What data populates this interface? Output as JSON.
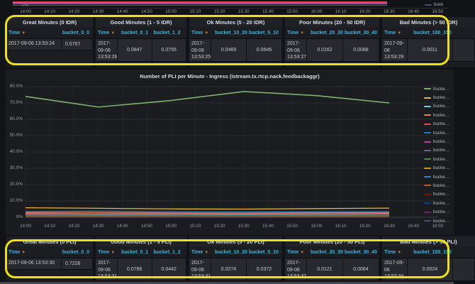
{
  "annotations": {
    "highlight_color": "#f0e20c"
  },
  "top_strip": {
    "y_axis_label": "0%",
    "legend": {
      "label": "buck",
      "color": "#584477"
    },
    "line_colors": [
      "#E24D42",
      "#BA43A9",
      "#1F78C1"
    ]
  },
  "top_tables": [
    {
      "title": "Great Minutes (0 IDR)",
      "columns": [
        "Time",
        "bucket_0_0"
      ],
      "row": {
        "time": "2017-09-06 13:53:24",
        "values": [
          "0.5767"
        ]
      }
    },
    {
      "title": "Good Minutes (1 - 5 IDR)",
      "columns": [
        "Time",
        "bucket_0_1",
        "bucket_1_2"
      ],
      "row": {
        "time": "2017-09-06 13:53:26",
        "values": [
          "0.0847",
          "0.0755"
        ]
      }
    },
    {
      "title": "Ok Minutes (5 - 20 IDR)",
      "columns": [
        "Time",
        "bucket_10_20",
        "bucket_5_10"
      ],
      "row": {
        "time": "2017-09-06 13:53:25",
        "values": [
          "0.0469",
          "0.0646"
        ]
      }
    },
    {
      "title": "Poor Minutes (20 - 50 IDR)",
      "columns": [
        "Time",
        "bucket_20_30",
        "bucket_30_40"
      ],
      "row": {
        "time": "2017-09-06 13:53:27",
        "values": [
          "0.0162",
          "0.0088"
        ]
      }
    },
    {
      "title": "Bad Minutes (> 50 IDR)",
      "columns": [
        "Time",
        "bucket_100_150"
      ],
      "row": {
        "time": "2017-09-06 13:53:29",
        "values": [
          "0.0011"
        ]
      }
    }
  ],
  "bottom_tables": [
    {
      "title": "Great Minutes (0 PLI)",
      "columns": [
        "Time",
        "bucket_0_0"
      ],
      "row": {
        "time": "2017-09-06 13:53:30",
        "values": [
          "0.7226"
        ]
      }
    },
    {
      "title": "Good Minutes (1 - 5 PLI)",
      "columns": [
        "Time",
        "bucket_0_1",
        "bucket_1_2"
      ],
      "row": {
        "time": "2017-09-06 13:53:31",
        "values": [
          "0.0786",
          "0.0442"
        ]
      }
    },
    {
      "title": "Ok Minutes (5 - 20 PLI)",
      "columns": [
        "Time",
        "bucket_10_20",
        "bucket_5_10"
      ],
      "row": {
        "time": "2017-09-06 13:53:31",
        "values": [
          "0.0274",
          "0.0372"
        ]
      }
    },
    {
      "title": "Poor Minutes (20 - 50 PLI)",
      "columns": [
        "Time",
        "bucket_20_30",
        "bucket_30_40"
      ],
      "row": {
        "time": "2017-09-06 13:53:32",
        "values": [
          "0.0121",
          "0.0064"
        ]
      }
    },
    {
      "title": "Bad Minutes (> 50 PLI)",
      "columns": [
        "Time",
        "bucket_100_150"
      ],
      "row": {
        "time": "2017-09-06 13:53:34",
        "values": [
          "0.0024"
        ]
      }
    }
  ],
  "chart_data": [
    {
      "type": "line",
      "title": "Number of PLI per Minute - Ingress (istream.tx.rtcp.nack.feedbackaggr)",
      "x": [
        "14:00",
        "14:30",
        "15:00",
        "15:30",
        "16:00",
        "16:30"
      ],
      "x_ticks": [
        "14:00",
        "14:10",
        "14:20",
        "14:30",
        "14:40",
        "14:50",
        "15:00",
        "15:10",
        "15:20",
        "15:30",
        "15:40",
        "15:50",
        "16:00",
        "16:10",
        "16:20",
        "16:30",
        "16:40",
        "16:50"
      ],
      "y_ticks": [
        "80.0%",
        "70.0%",
        "60.0%",
        "50.0%",
        "40.0%",
        "30.0%",
        "20.0%",
        "10.0%",
        "0%"
      ],
      "ylim": [
        0,
        80
      ],
      "grid": true,
      "legend_position": "right",
      "data_end": "16:30",
      "series": [
        {
          "name": "bucke…",
          "color": "#7EB26D",
          "values": [
            74,
            67.5,
            71.5,
            77,
            74.5,
            70
          ]
        },
        {
          "name": "bucke…",
          "color": "#EAB839",
          "values": [
            5.8,
            5.5,
            5.1,
            5.0,
            5.3,
            5.6
          ]
        },
        {
          "name": "bucke…",
          "color": "#6ED0E0",
          "values": [
            1.9,
            1.8,
            1.8,
            1.7,
            1.8,
            1.9
          ]
        },
        {
          "name": "bucke…",
          "color": "#EF843C",
          "values": [
            2.9,
            3.0,
            2.7,
            2.6,
            2.8,
            2.8
          ]
        },
        {
          "name": "bucke…",
          "color": "#E24D42",
          "values": [
            2.3,
            2.2,
            2.3,
            2.1,
            2.2,
            2.3
          ]
        },
        {
          "name": "bucke…",
          "color": "#1F78C1",
          "values": [
            3.6,
            3.8,
            3.5,
            3.3,
            3.4,
            3.5
          ]
        },
        {
          "name": "bucke…",
          "color": "#BA43A9",
          "values": [
            1.1,
            1.0,
            1.0,
            0.9,
            1.0,
            1.0
          ]
        },
        {
          "name": "bucke…",
          "color": "#705DA0",
          "values": [
            0.8,
            0.75,
            0.7,
            0.7,
            0.75,
            0.8
          ]
        },
        {
          "name": "bucke…",
          "color": "#508642",
          "values": [
            0.65,
            0.62,
            0.6,
            0.6,
            0.62,
            0.65
          ]
        },
        {
          "name": "bucke…",
          "color": "#CCA300",
          "values": [
            0.55,
            0.53,
            0.5,
            0.5,
            0.53,
            0.55
          ]
        },
        {
          "name": "bucke…",
          "color": "#447EBC",
          "values": [
            0.45,
            0.44,
            0.42,
            0.42,
            0.44,
            0.45
          ]
        },
        {
          "name": "bucke…",
          "color": "#C15C17",
          "values": [
            0.38,
            0.36,
            0.35,
            0.35,
            0.36,
            0.38
          ]
        },
        {
          "name": "bucke…",
          "color": "#890F02",
          "values": [
            0.3,
            0.29,
            0.28,
            0.28,
            0.29,
            0.3
          ]
        },
        {
          "name": "bucke…",
          "color": "#0A437C",
          "values": [
            0.22,
            0.21,
            0.2,
            0.2,
            0.21,
            0.22
          ]
        },
        {
          "name": "bucke…",
          "color": "#6D1F62",
          "values": [
            0.15,
            0.14,
            0.13,
            0.13,
            0.14,
            0.15
          ]
        },
        {
          "name": "bucke…",
          "color": "#584477",
          "values": [
            0.08,
            0.08,
            0.07,
            0.07,
            0.08,
            0.08
          ]
        }
      ]
    },
    {
      "type": "line",
      "note": "top strip: only bottom edge of previous graph panel visible",
      "x_ticks": [
        "14:00",
        "14:10",
        "14:20",
        "14:30",
        "14:40",
        "14:50",
        "15:00",
        "15:10",
        "15:20",
        "15:30",
        "15:40",
        "15:50",
        "16:00",
        "16:10",
        "16:20",
        "16:30",
        "16:40",
        "16:50"
      ],
      "y_ticks": [
        "0%"
      ],
      "series": [
        {
          "name": "buck",
          "color": "#E24D42"
        },
        {
          "name": "buck",
          "color": "#BA43A9"
        },
        {
          "name": "buck",
          "color": "#1F78C1"
        }
      ]
    }
  ]
}
